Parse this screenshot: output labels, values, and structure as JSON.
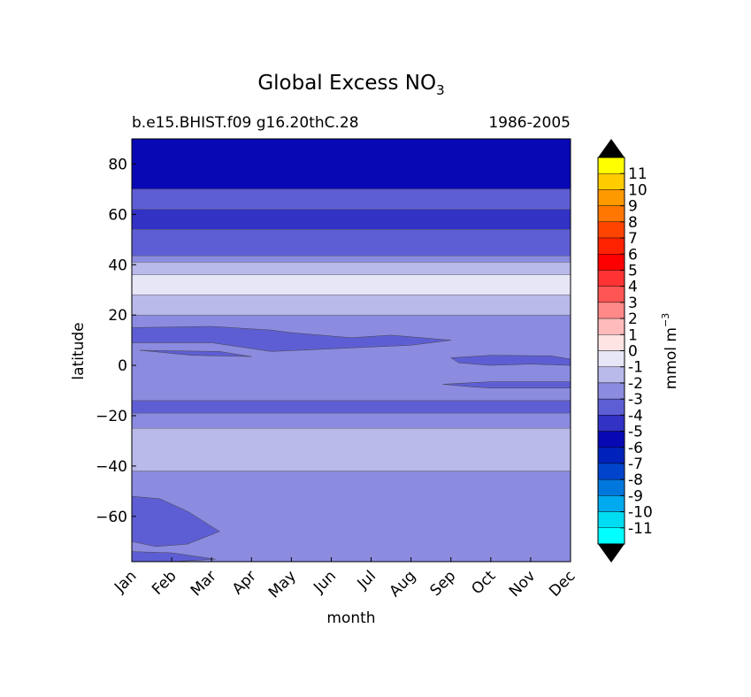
{
  "chart_data": {
    "type": "contour",
    "title_main": "Global Excess NO",
    "title_subscript": "3",
    "subtitle_left": "b.e15.BHIST.f09 g16.20thC.28",
    "subtitle_right": "1986-2005",
    "xlabel": "month",
    "ylabel": "latitude",
    "x_ticks": [
      "Jan",
      "Feb",
      "Mar",
      "Apr",
      "May",
      "Jun",
      "Jul",
      "Aug",
      "Sep",
      "Oct",
      "Nov",
      "Dec"
    ],
    "y_ticks": [
      80,
      60,
      40,
      20,
      0,
      -20,
      -40,
      -60
    ],
    "y_tick_labels": [
      "80",
      "60",
      "40",
      "20",
      "0",
      "−20",
      "−40",
      "−60"
    ],
    "ylim": [
      -78,
      90
    ],
    "xlim": [
      1,
      12
    ],
    "colorbar": {
      "label": "mmol m",
      "label_superscript": "−3",
      "ticks": [
        "11",
        "10",
        "9",
        "8",
        "7",
        "6",
        "5",
        "4",
        "3",
        "2",
        "1",
        "0",
        "-1",
        "-2",
        "-3",
        "-4",
        "-5",
        "-6",
        "-7",
        "-8",
        "-9",
        "-10",
        "-11"
      ],
      "colors_top_to_bottom": [
        "#ffff00",
        "#ffcc00",
        "#ff9900",
        "#ff7700",
        "#ff4400",
        "#ff2200",
        "#ff0000",
        "#ff3333",
        "#ff5555",
        "#ff8888",
        "#ffbbbb",
        "#ffe4e4",
        "#e6e6f7",
        "#b9b9ea",
        "#8b8be0",
        "#5e5ed4",
        "#3232c4",
        "#0808b4",
        "#0022bb",
        "#0044cc",
        "#0077dd",
        "#00aaee",
        "#00ddf2",
        "#00ffff"
      ],
      "over_color": "#000000",
      "under_color": "#000000"
    },
    "bands": [
      {
        "lat_min": 70,
        "lat_max": 90,
        "level": "-6 to -5",
        "color": "#0808b4"
      },
      {
        "lat_min": 62,
        "lat_max": 70,
        "level": "-4 to -3",
        "color": "#5e5ed4"
      },
      {
        "lat_min": 54,
        "lat_max": 62,
        "level": "-5 to -4",
        "color": "#3232c4"
      },
      {
        "lat_min": 43.5,
        "lat_max": 54,
        "level": "-4 to -3",
        "color": "#5e5ed4"
      },
      {
        "lat_min": 41,
        "lat_max": 43.5,
        "level": "-3 to -2",
        "color": "#8b8be0"
      },
      {
        "lat_min": 36,
        "lat_max": 41,
        "level": "-2 to -1",
        "color": "#b9b9ea"
      },
      {
        "lat_min": 28,
        "lat_max": 36,
        "level": "-1 to 0",
        "color": "#e6e6f7"
      },
      {
        "lat_min": 20,
        "lat_max": 28,
        "level": "-2 to -1",
        "color": "#b9b9ea"
      },
      {
        "lat_min": -14,
        "lat_max": 20,
        "level": "-3 to -2",
        "color": "#8b8be0"
      },
      {
        "lat_min": -19,
        "lat_max": -14,
        "level": "-4 to -3",
        "color": "#5e5ed4"
      },
      {
        "lat_min": -25,
        "lat_max": -19,
        "level": "-3 to -2",
        "color": "#8b8be0"
      },
      {
        "lat_min": -42,
        "lat_max": -25,
        "level": "-2 to -1",
        "color": "#b9b9ea"
      },
      {
        "lat_min": -78,
        "lat_max": -42,
        "level": "-3 to -2",
        "color": "#8b8be0"
      }
    ],
    "patches": [
      {
        "level": "-4 to -3",
        "color": "#5e5ed4",
        "points": [
          [
            1,
            15
          ],
          [
            1,
            9
          ],
          [
            3,
            9
          ],
          [
            4.5,
            5.5
          ],
          [
            8,
            8
          ],
          [
            9,
            10
          ],
          [
            7.5,
            12
          ],
          [
            6.5,
            11
          ],
          [
            5,
            13
          ],
          [
            4.5,
            14
          ],
          [
            3,
            15.5
          ],
          [
            1,
            15
          ]
        ]
      },
      {
        "level": "-4 to -3",
        "color": "#5e5ed4",
        "points": [
          [
            1.2,
            6
          ],
          [
            2.5,
            4
          ],
          [
            4,
            3.5
          ],
          [
            3.2,
            5.5
          ],
          [
            1.2,
            6
          ]
        ]
      },
      {
        "level": "-4 to -3",
        "color": "#5e5ed4",
        "points": [
          [
            9,
            3
          ],
          [
            10,
            4
          ],
          [
            11.5,
            3.8
          ],
          [
            12,
            2.5
          ],
          [
            12,
            0
          ],
          [
            11,
            0.5
          ],
          [
            10,
            0
          ],
          [
            9.2,
            1
          ],
          [
            9,
            3
          ]
        ]
      },
      {
        "level": "-4 to -3",
        "color": "#5e5ed4",
        "points": [
          [
            8.8,
            -7.5
          ],
          [
            10,
            -6.5
          ],
          [
            12,
            -6.5
          ],
          [
            12,
            -9
          ],
          [
            10,
            -9
          ],
          [
            9.5,
            -8.5
          ],
          [
            8.8,
            -7.5
          ]
        ]
      },
      {
        "level": "-4 to -3",
        "color": "#5e5ed4",
        "points": [
          [
            1,
            -52
          ],
          [
            1.7,
            -53
          ],
          [
            2.4,
            -58
          ],
          [
            3.2,
            -66
          ],
          [
            2.4,
            -71
          ],
          [
            1.6,
            -72
          ],
          [
            1,
            -70
          ],
          [
            1,
            -52
          ]
        ]
      },
      {
        "level": "-4 to -3",
        "color": "#5e5ed4",
        "points": [
          [
            1,
            -74
          ],
          [
            2,
            -74.5
          ],
          [
            3.1,
            -77
          ],
          [
            2,
            -78
          ],
          [
            1,
            -78
          ],
          [
            1,
            -74
          ]
        ]
      }
    ]
  }
}
